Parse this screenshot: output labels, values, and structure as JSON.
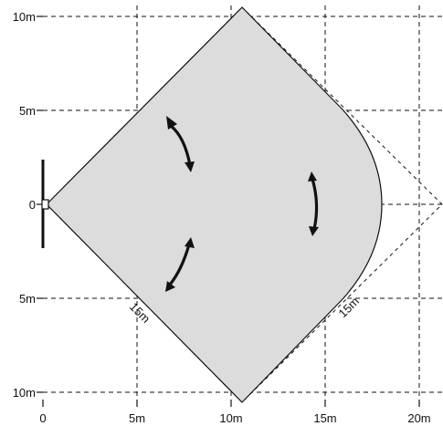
{
  "left_axis_labels": [
    "10m",
    "5m",
    "0",
    "5m",
    "10m"
  ],
  "bottom_axis_labels": [
    "0",
    "5m",
    "10m",
    "15m",
    "20m"
  ],
  "range_labels": [
    "15m",
    "15m"
  ],
  "colors": {
    "coverage_fill": "#dcdcdc",
    "lines": "#111111"
  }
}
